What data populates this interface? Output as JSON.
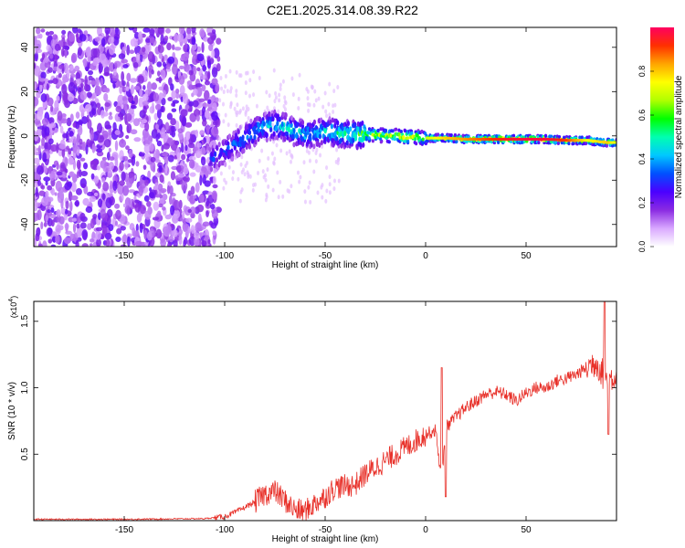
{
  "figure_title": "C2E1.2025.314.08.39.R22",
  "chart_data": [
    {
      "type": "heatmap",
      "xlabel": "Height of straight line (km)",
      "ylabel": "Frequency (Hz)",
      "xlim": [
        -195,
        95
      ],
      "ylim": [
        -50,
        49
      ],
      "xticks": [
        -150,
        -100,
        -50,
        0,
        50
      ],
      "yticks": [
        -40,
        -20,
        0,
        20,
        40
      ],
      "colorbar": {
        "label": "Normalized spectral amplitude",
        "range": [
          0,
          1
        ],
        "ticks": [
          0.0,
          0.2,
          0.4,
          0.6,
          0.8
        ],
        "tick_labels": [
          "0.0",
          "0.2",
          "0.4",
          "0.6",
          "0.8"
        ],
        "colors": [
          "#ffffff",
          "#d9a8ff",
          "#8a2be2",
          "#4b00ff",
          "#0050ff",
          "#00c8ff",
          "#00ffb0",
          "#00ff00",
          "#b0ff00",
          "#ffff00",
          "#ffa500",
          "#ff3000",
          "#ff0060"
        ]
      },
      "features": {
        "noise_region_x": [
          -195,
          -103
        ],
        "signal_track": [
          {
            "x": -105,
            "freq": -10,
            "amp": 0.35
          },
          {
            "x": -100,
            "freq": -7,
            "amp": 0.35
          },
          {
            "x": -95,
            "freq": -4,
            "amp": 0.4
          },
          {
            "x": -90,
            "freq": -1,
            "amp": 0.45
          },
          {
            "x": -85,
            "freq": 2,
            "amp": 0.45
          },
          {
            "x": -80,
            "freq": 4,
            "amp": 0.5
          },
          {
            "x": -75,
            "freq": 5,
            "amp": 0.5
          },
          {
            "x": -70,
            "freq": 4,
            "amp": 0.5
          },
          {
            "x": -65,
            "freq": 2,
            "amp": 0.5
          },
          {
            "x": -60,
            "freq": 1,
            "amp": 0.5
          },
          {
            "x": -55,
            "freq": 1,
            "amp": 0.5
          },
          {
            "x": -50,
            "freq": 2,
            "amp": 0.55
          },
          {
            "x": -45,
            "freq": 1.5,
            "amp": 0.55
          },
          {
            "x": -40,
            "freq": 1,
            "amp": 0.55
          },
          {
            "x": -35,
            "freq": 0.5,
            "amp": 0.6
          },
          {
            "x": -30,
            "freq": 0.5,
            "amp": 0.7
          },
          {
            "x": -25,
            "freq": 0.5,
            "amp": 0.75
          },
          {
            "x": -20,
            "freq": 0,
            "amp": 0.75
          },
          {
            "x": -15,
            "freq": 0,
            "amp": 0.8
          },
          {
            "x": -10,
            "freq": -0.5,
            "amp": 0.85
          },
          {
            "x": -5,
            "freq": -0.5,
            "amp": 0.8
          },
          {
            "x": 0,
            "freq": -1,
            "amp": 0.7
          },
          {
            "x": 5,
            "freq": -1,
            "amp": 0.75
          },
          {
            "x": 10,
            "freq": -1,
            "amp": 0.8
          },
          {
            "x": 20,
            "freq": -1.5,
            "amp": 0.85
          },
          {
            "x": 30,
            "freq": -1.5,
            "amp": 0.9
          },
          {
            "x": 40,
            "freq": -1.5,
            "amp": 0.95
          },
          {
            "x": 50,
            "freq": -1.5,
            "amp": 0.97
          },
          {
            "x": 60,
            "freq": -1.5,
            "amp": 0.97
          },
          {
            "x": 70,
            "freq": -2,
            "amp": 0.9
          },
          {
            "x": 80,
            "freq": -2,
            "amp": 0.75
          },
          {
            "x": 90,
            "freq": -3,
            "amp": 0.8
          },
          {
            "x": 95,
            "freq": -3,
            "amp": 0.7
          }
        ]
      }
    },
    {
      "type": "line",
      "xlabel": "Height of straight line (km)",
      "ylabel": "SNR (10 * v/v)",
      "y_multiplier": "x10^4",
      "xlim": [
        -195,
        95
      ],
      "ylim": [
        0,
        1.65
      ],
      "xticks": [
        -150,
        -100,
        -50,
        0,
        50
      ],
      "yticks": [
        0.5,
        1.0,
        1.5
      ],
      "ytick_labels": [
        "0.5",
        "1.0",
        "1.5"
      ],
      "color": "#e8312a",
      "series": [
        {
          "name": "SNR",
          "x": [
            -195,
            -150,
            -110,
            -100,
            -95,
            -90,
            -85,
            -80,
            -75,
            -70,
            -65,
            -60,
            -55,
            -50,
            -45,
            -40,
            -35,
            -30,
            -25,
            -20,
            -15,
            -10,
            -5,
            0,
            5,
            8,
            10,
            15,
            20,
            25,
            30,
            35,
            40,
            45,
            50,
            55,
            60,
            65,
            70,
            75,
            80,
            85,
            90,
            95
          ],
          "values": [
            0.01,
            0.01,
            0.015,
            0.03,
            0.06,
            0.1,
            0.14,
            0.2,
            0.22,
            0.15,
            0.08,
            0.07,
            0.13,
            0.18,
            0.25,
            0.26,
            0.27,
            0.35,
            0.4,
            0.45,
            0.5,
            0.55,
            0.6,
            0.65,
            0.68,
            0.3,
            0.7,
            0.78,
            0.85,
            0.9,
            0.95,
            0.97,
            0.95,
            0.9,
            0.96,
            1.0,
            1.0,
            1.05,
            1.07,
            1.1,
            1.15,
            1.2,
            1.05,
            1.1
          ]
        }
      ],
      "spikes": [
        {
          "x": 8,
          "value": 1.15
        },
        {
          "x": 10,
          "value": 0.18
        },
        {
          "x": 89,
          "value": 1.65
        },
        {
          "x": 91,
          "value": 0.65
        }
      ]
    }
  ]
}
